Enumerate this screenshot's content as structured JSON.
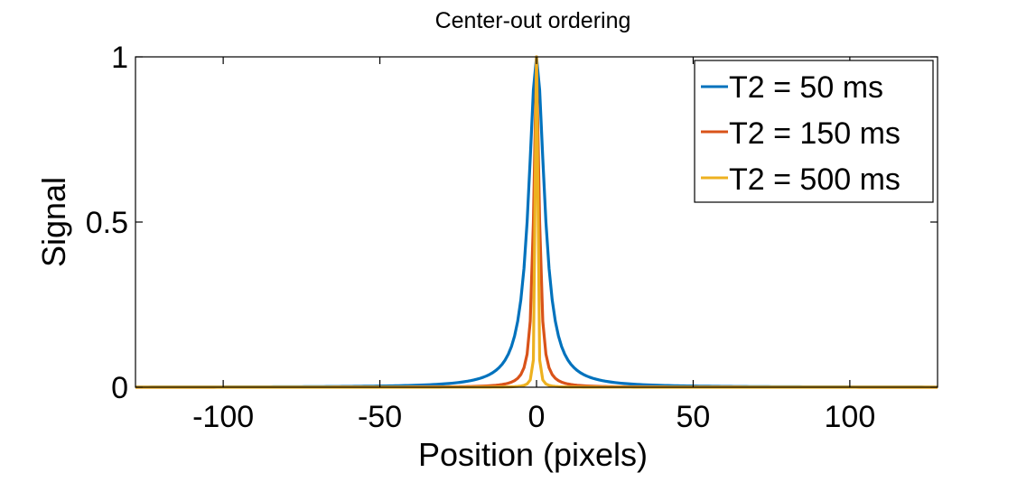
{
  "chart_data": {
    "type": "line",
    "title": "Center-out ordering",
    "xlabel": "Position (pixels)",
    "ylabel": "Signal",
    "xlim": [
      -128,
      128
    ],
    "ylim": [
      0,
      1
    ],
    "xticks": [
      -100,
      -50,
      0,
      50,
      100
    ],
    "xtick_labels": [
      "-100",
      "-50",
      "0",
      "50",
      "100"
    ],
    "yticks": [
      0,
      0.5,
      1
    ],
    "ytick_labels": [
      "0",
      "0.5",
      "1"
    ],
    "grid": false,
    "legend_position": "top-right",
    "x_step": 1,
    "series": [
      {
        "name": "T2 = 50 ms",
        "color": "#0072BD",
        "shape": "lorentzian",
        "hwhm": 3.0
      },
      {
        "name": "T2 = 150 ms",
        "color": "#D95319",
        "shape": "lorentzian",
        "hwhm": 1.0
      },
      {
        "name": "T2 = 500 ms",
        "color": "#EDB120",
        "shape": "lorentzian",
        "hwhm": 0.3
      }
    ]
  }
}
